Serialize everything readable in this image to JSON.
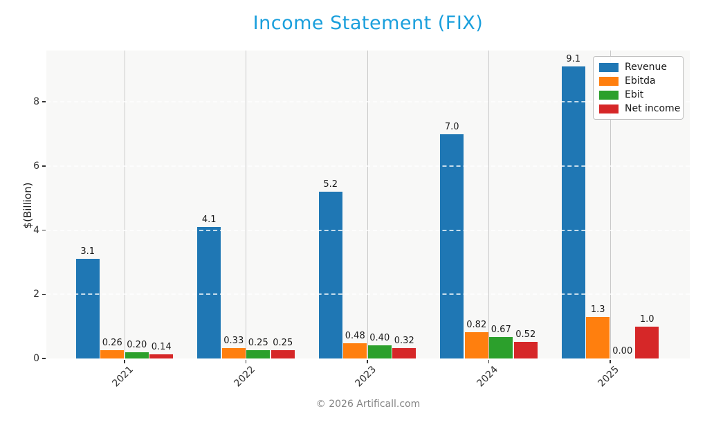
{
  "title": "Income Statement (FIX)",
  "footer_text": "© 2026 Artificall.com",
  "colors": {
    "title": "#1a9fdc",
    "plot_background": "#f8f8f7",
    "vertical_grid": "#c9c9c9",
    "horizontal_grid": "#ffffff",
    "tick_text": "#333333",
    "footer_text": "#848484"
  },
  "chart_data": {
    "type": "bar",
    "title": "Income Statement (FIX)",
    "xlabel": "",
    "ylabel": "$(Billion)",
    "categories": [
      "2021",
      "2022",
      "2023",
      "2024",
      "2025"
    ],
    "series": [
      {
        "name": "Revenue",
        "color": "#1f77b4",
        "values": [
          3.1,
          4.1,
          5.2,
          7.0,
          9.1
        ],
        "labels": [
          "3.1",
          "4.1",
          "5.2",
          "7.0",
          "9.1"
        ]
      },
      {
        "name": "Ebitda",
        "color": "#ff7f0e",
        "values": [
          0.26,
          0.33,
          0.48,
          0.82,
          1.3
        ],
        "labels": [
          "0.26",
          "0.33",
          "0.48",
          "0.82",
          "1.3"
        ]
      },
      {
        "name": "Ebit",
        "color": "#2ca02c",
        "values": [
          0.2,
          0.25,
          0.4,
          0.67,
          0.0
        ],
        "labels": [
          "0.20",
          "0.25",
          "0.40",
          "0.67",
          "0.00"
        ]
      },
      {
        "name": "Net income",
        "color": "#d62728",
        "values": [
          0.14,
          0.25,
          0.32,
          0.52,
          1.0
        ],
        "labels": [
          "0.14",
          "0.25",
          "0.32",
          "0.52",
          "1.0"
        ]
      }
    ],
    "yticks": [
      0,
      2,
      4,
      6,
      8
    ],
    "ylim": [
      0,
      9.6
    ],
    "grid": true,
    "legend_position": "upper right"
  }
}
